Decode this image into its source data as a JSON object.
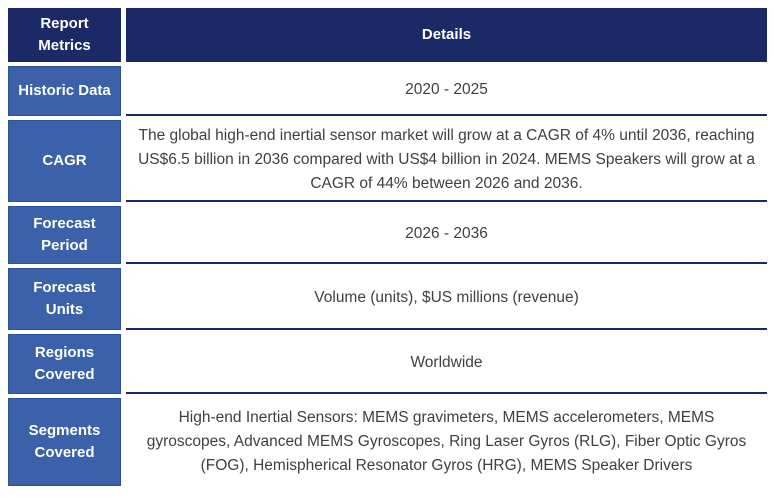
{
  "table": {
    "title": "Report summary table",
    "colors": {
      "header_bg": "#1b2a66",
      "metric_bg": "#3a61a9",
      "rule": "#1b2a66",
      "details_text": "#3f3f3f"
    },
    "header": {
      "metric": "Report Metrics",
      "details": "Details"
    },
    "rows": [
      {
        "metric": "Historic Data",
        "details": "2020 - 2025"
      },
      {
        "metric": "CAGR",
        "details": "The global high-end inertial sensor market will grow at a CAGR of 4% until 2036, reaching US$6.5 billion in 2036 compared with US$4 billion in 2024. MEMS Speakers will grow at a CAGR of 44% between 2026 and 2036."
      },
      {
        "metric": "Forecast Period",
        "details": "2026 - 2036"
      },
      {
        "metric": "Forecast Units",
        "details": "Volume (units), $US millions (revenue)"
      },
      {
        "metric": "Regions Covered",
        "details": "Worldwide"
      },
      {
        "metric": "Segments Covered",
        "details": "High-end Inertial Sensors: MEMS gravimeters, MEMS accelerometers, MEMS gyroscopes, Advanced MEMS Gyroscopes, Ring Laser Gyros (RLG), Fiber Optic Gyros (FOG), Hemispherical Resonator Gyros (HRG), MEMS Speaker Drivers"
      }
    ]
  }
}
